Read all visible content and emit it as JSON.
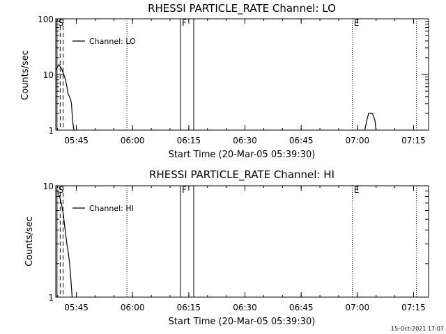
{
  "footer": {
    "timestamp": "15-Oct-2021 17:07"
  },
  "chart_data": [
    {
      "type": "line",
      "title": "RHESSI PARTICLE_RATE Channel: LO",
      "xlabel": "Start Time (20-Mar-05 05:39:30)",
      "ylabel": "Counts/sec",
      "yscale": "log",
      "ylim": [
        1,
        100
      ],
      "xlim": [
        5.6583,
        7.3167
      ],
      "x_ticks": [
        {
          "label": "05:45",
          "value": 5.75
        },
        {
          "label": "06:00",
          "value": 6.0
        },
        {
          "label": "06:15",
          "value": 6.25
        },
        {
          "label": "06:30",
          "value": 6.5
        },
        {
          "label": "06:45",
          "value": 6.75
        },
        {
          "label": "07:00",
          "value": 7.0
        },
        {
          "label": "07:15",
          "value": 7.25
        }
      ],
      "y_ticks": [
        {
          "label": "1",
          "value": 1
        },
        {
          "label": "10",
          "value": 10
        },
        {
          "label": "100",
          "value": 100
        }
      ],
      "legend": {
        "text": "Channel: LO",
        "placement": "top-left"
      },
      "series": [
        {
          "name": "Channel: LO",
          "x": [
            5.6583,
            5.672,
            5.683,
            5.694,
            5.702,
            5.708,
            5.713,
            5.719,
            5.725,
            5.728,
            5.731,
            5.733,
            5.739,
            5.742
          ],
          "y": [
            12,
            15,
            13,
            10,
            8,
            6,
            4.5,
            4,
            3.5,
            3,
            2,
            1.5,
            1,
            1
          ]
        },
        {
          "name": "",
          "x": [
            7.033,
            7.042,
            7.05,
            7.058,
            7.067,
            7.078,
            7.083
          ],
          "y": [
            1,
            1.5,
            2,
            2,
            2,
            1.5,
            1
          ]
        }
      ],
      "vlines": [
        {
          "x": 5.664,
          "style": "solid",
          "label": "S"
        },
        {
          "x": 5.678,
          "style": "dashed",
          "label": ""
        },
        {
          "x": 5.691,
          "style": "dashed",
          "label": ""
        },
        {
          "x": 5.975,
          "style": "dotted",
          "label": ""
        },
        {
          "x": 6.213,
          "style": "solid",
          "label": "F"
        },
        {
          "x": 6.272,
          "style": "solid",
          "label": ""
        },
        {
          "x": 6.978,
          "style": "dotted",
          "label": "E"
        },
        {
          "x": 7.263,
          "style": "dotted",
          "label": ""
        }
      ]
    },
    {
      "type": "line",
      "title": "RHESSI PARTICLE_RATE Channel: HI",
      "xlabel": "Start Time (20-Mar-05 05:39:30)",
      "ylabel": "Counts/sec",
      "yscale": "log",
      "ylim": [
        1,
        10
      ],
      "xlim": [
        5.6583,
        7.3167
      ],
      "x_ticks": [
        {
          "label": "05:45",
          "value": 5.75
        },
        {
          "label": "06:00",
          "value": 6.0
        },
        {
          "label": "06:15",
          "value": 6.25
        },
        {
          "label": "06:30",
          "value": 6.5
        },
        {
          "label": "06:45",
          "value": 6.75
        },
        {
          "label": "07:00",
          "value": 7.0
        },
        {
          "label": "07:15",
          "value": 7.25
        }
      ],
      "y_ticks": [
        {
          "label": "1",
          "value": 1
        },
        {
          "label": "10",
          "value": 10
        }
      ],
      "legend": {
        "text": "Channel: HI",
        "placement": "top-left"
      },
      "series": [
        {
          "name": "Channel: HI",
          "x": [
            5.6583,
            5.667,
            5.675,
            5.683,
            5.692,
            5.7,
            5.708,
            5.714,
            5.72,
            5.725,
            5.731
          ],
          "y": [
            9,
            9,
            8,
            7,
            5.5,
            4,
            3,
            2.5,
            2,
            1.5,
            1
          ]
        }
      ],
      "vlines": [
        {
          "x": 5.664,
          "style": "solid",
          "label": "S"
        },
        {
          "x": 5.678,
          "style": "dashed",
          "label": ""
        },
        {
          "x": 5.691,
          "style": "dashed",
          "label": ""
        },
        {
          "x": 5.975,
          "style": "dotted",
          "label": ""
        },
        {
          "x": 6.213,
          "style": "solid",
          "label": "F"
        },
        {
          "x": 6.272,
          "style": "solid",
          "label": ""
        },
        {
          "x": 6.978,
          "style": "dotted",
          "label": "E"
        },
        {
          "x": 7.263,
          "style": "dotted",
          "label": ""
        }
      ]
    }
  ]
}
